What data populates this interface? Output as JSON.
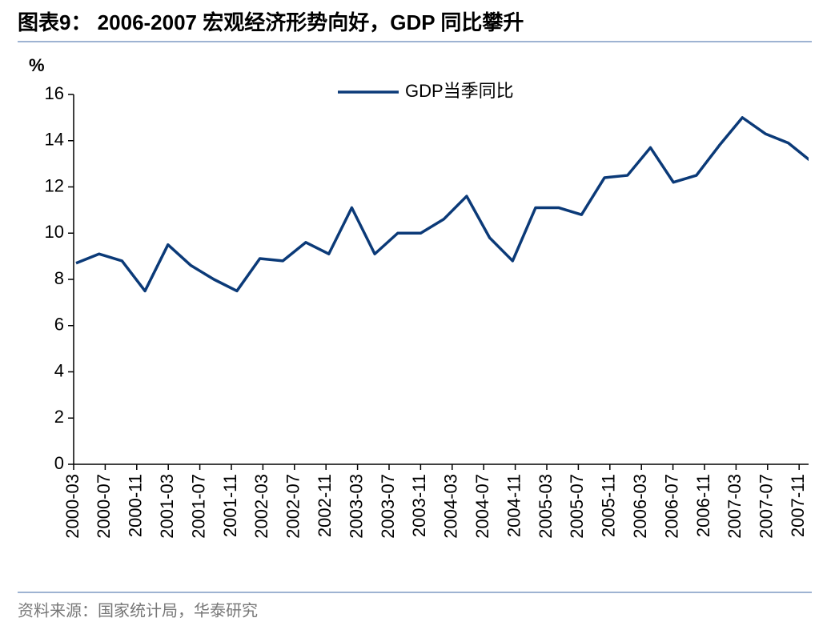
{
  "chart_data": {
    "type": "line",
    "title": "图表9： 2006-2007 宏观经济形势向好，GDP 同比攀升",
    "y_label": "%",
    "source": "资料来源：国家统计局，华泰研究",
    "xticks": [
      "2000-03",
      "2000-07",
      "2000-11",
      "2001-03",
      "2001-07",
      "2001-11",
      "2002-03",
      "2002-07",
      "2002-11",
      "2003-03",
      "2003-07",
      "2003-11",
      "2004-03",
      "2004-07",
      "2004-11",
      "2005-03",
      "2005-07",
      "2005-11",
      "2006-03",
      "2006-07",
      "2006-11",
      "2007-03",
      "2007-07",
      "2007-11"
    ],
    "series": [
      {
        "name": "GDP当季同比",
        "color": "#0b3a78",
        "values": [
          8.7,
          9.1,
          8.8,
          7.5,
          9.5,
          8.6,
          8.0,
          7.5,
          8.9,
          8.8,
          9.6,
          9.1,
          11.1,
          9.1,
          10.0,
          10.0,
          10.6,
          11.6,
          9.8,
          8.8,
          11.1,
          11.1,
          10.8,
          12.4,
          12.5,
          13.7,
          12.2,
          12.5,
          13.8,
          15.0,
          14.3,
          13.9,
          13.1
        ]
      }
    ],
    "ylim": [
      0,
      16
    ],
    "yticks": [
      0,
      2,
      4,
      6,
      8,
      10,
      12,
      14,
      16
    ],
    "legend": "top"
  }
}
